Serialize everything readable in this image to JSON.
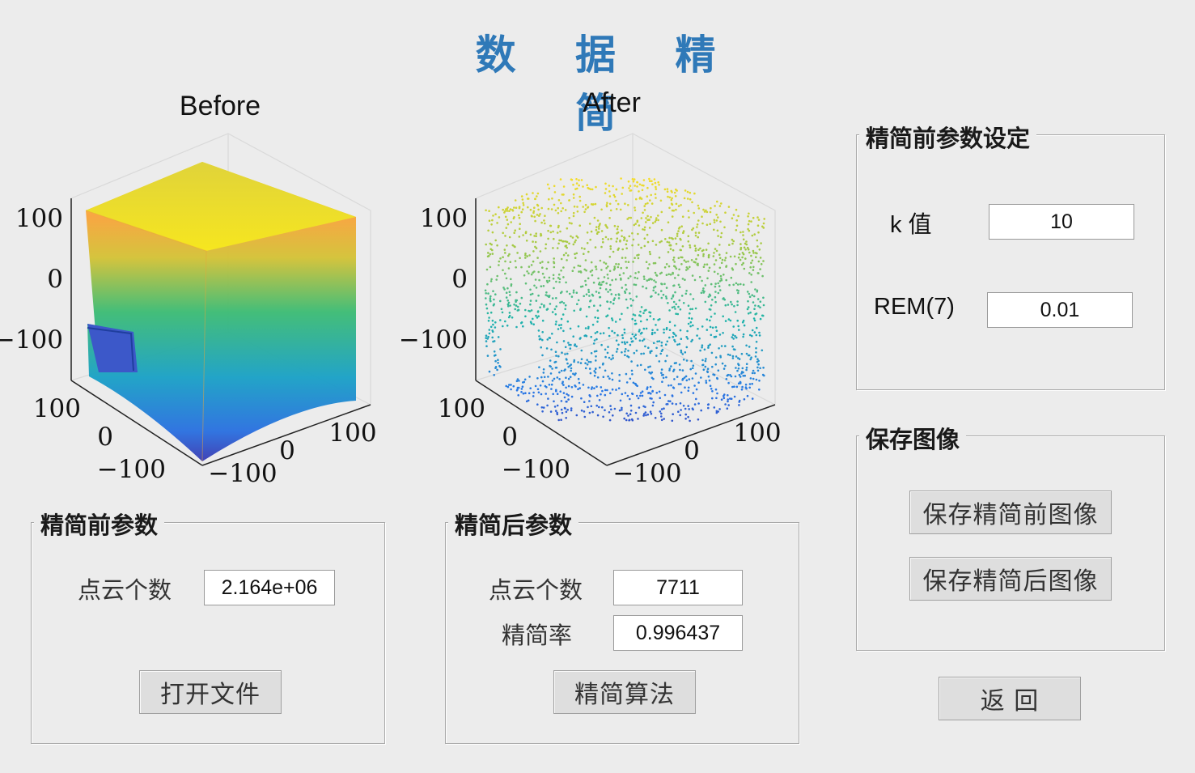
{
  "window": {
    "title": "数 据 精 简",
    "accent_color": "#2f79b8",
    "background": "#ececec"
  },
  "plots": {
    "before": {
      "title": "Before",
      "z_ticks": [
        "100",
        "0",
        "−100"
      ],
      "x_ticks": [
        "100",
        "0",
        "−100"
      ],
      "y_ticks": [
        "−100",
        "0",
        "100"
      ],
      "colormap": "parula",
      "style": "dense"
    },
    "after": {
      "title": "After",
      "z_ticks": [
        "100",
        "0",
        "−100"
      ],
      "x_ticks": [
        "100",
        "0",
        "−100"
      ],
      "y_ticks": [
        "−100",
        "0",
        "100"
      ],
      "colormap": "parula",
      "style": "sparse"
    }
  },
  "before_params": {
    "legend": "精简前参数",
    "point_count_label": "点云个数",
    "point_count_value": "2.164e+06",
    "open_file_button": "打开文件"
  },
  "after_params": {
    "legend": "精简后参数",
    "point_count_label": "点云个数",
    "point_count_value": "7711",
    "ratio_label": "精简率",
    "ratio_value": "0.996437",
    "simplify_button": "精简算法"
  },
  "settings": {
    "legend": "精简前参数设定",
    "k_label": "k  值",
    "k_value": "10",
    "rem_label": "REM(7)",
    "rem_value": "0.01"
  },
  "save": {
    "legend": "保存图像",
    "save_before_button": "保存精简前图像",
    "save_after_button": "保存精简后图像"
  },
  "back_button": "返  回"
}
